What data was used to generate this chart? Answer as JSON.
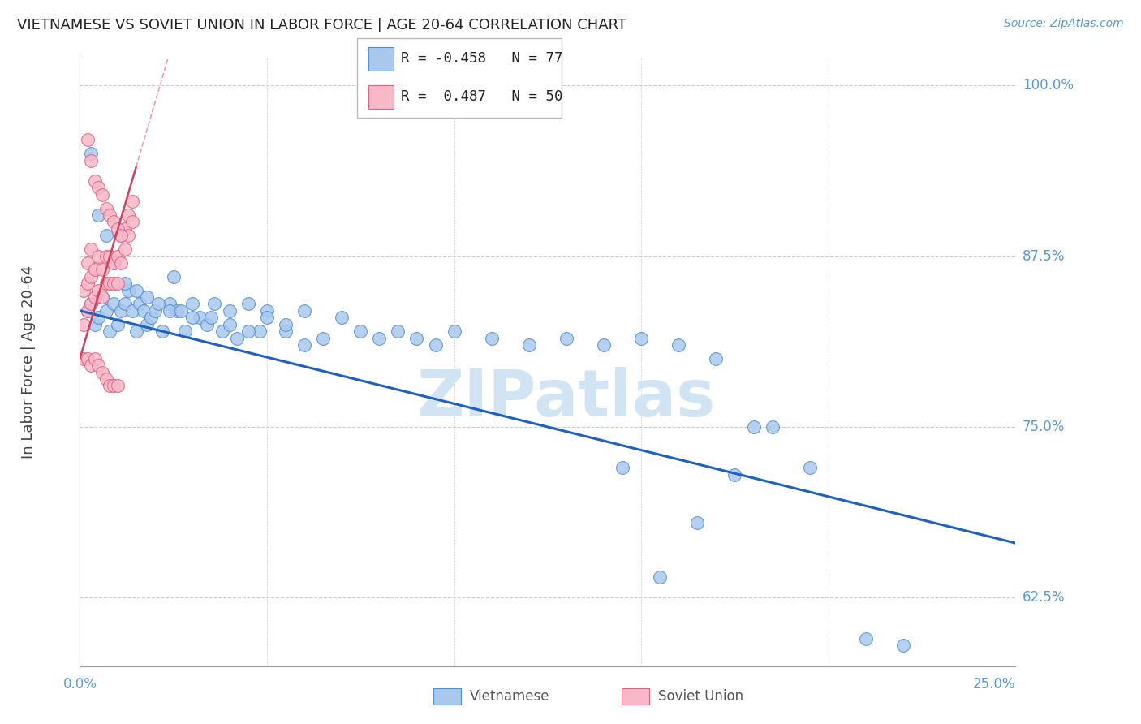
{
  "title": "VIETNAMESE VS SOVIET UNION IN LABOR FORCE | AGE 20-64 CORRELATION CHART",
  "source": "Source: ZipAtlas.com",
  "ylabel": "In Labor Force | Age 20-64",
  "xlim": [
    0.0,
    0.25
  ],
  "ylim": [
    0.575,
    1.02
  ],
  "yticks": [
    0.625,
    0.75,
    0.875,
    1.0
  ],
  "ytick_labels": [
    "62.5%",
    "75.0%",
    "87.5%",
    "100.0%"
  ],
  "legend_r_blue": "-0.458",
  "legend_n_blue": "77",
  "legend_r_pink": " 0.487",
  "legend_n_pink": "50",
  "blue_scatter_color": "#aac8ee",
  "blue_edge_color": "#5090d0",
  "pink_scatter_color": "#f8b8c8",
  "pink_edge_color": "#e06080",
  "blue_line_color": "#2060c0",
  "pink_line_color": "#d04060",
  "axis_label_color": "#5599dd",
  "title_color": "#222222",
  "grid_color": "#cccccc",
  "watermark_color": "#d0e4f4",
  "blue_x": [
    0.002,
    0.003,
    0.004,
    0.005,
    0.006,
    0.007,
    0.008,
    0.009,
    0.01,
    0.011,
    0.012,
    0.013,
    0.014,
    0.015,
    0.016,
    0.017,
    0.018,
    0.019,
    0.02,
    0.022,
    0.024,
    0.026,
    0.028,
    0.03,
    0.032,
    0.034,
    0.036,
    0.038,
    0.04,
    0.042,
    0.045,
    0.048,
    0.05,
    0.055,
    0.06,
    0.065,
    0.07,
    0.075,
    0.08,
    0.085,
    0.09,
    0.095,
    0.1,
    0.11,
    0.12,
    0.13,
    0.14,
    0.15,
    0.16,
    0.17,
    0.003,
    0.005,
    0.007,
    0.009,
    0.012,
    0.015,
    0.018,
    0.021,
    0.024,
    0.027,
    0.03,
    0.035,
    0.04,
    0.045,
    0.05,
    0.055,
    0.06,
    0.025,
    0.18,
    0.195,
    0.21,
    0.22,
    0.175,
    0.185,
    0.165,
    0.155,
    0.145
  ],
  "blue_y": [
    0.835,
    0.84,
    0.825,
    0.83,
    0.845,
    0.835,
    0.82,
    0.84,
    0.825,
    0.835,
    0.84,
    0.85,
    0.835,
    0.82,
    0.84,
    0.835,
    0.825,
    0.83,
    0.835,
    0.82,
    0.84,
    0.835,
    0.82,
    0.84,
    0.83,
    0.825,
    0.84,
    0.82,
    0.835,
    0.815,
    0.84,
    0.82,
    0.835,
    0.82,
    0.835,
    0.815,
    0.83,
    0.82,
    0.815,
    0.82,
    0.815,
    0.81,
    0.82,
    0.815,
    0.81,
    0.815,
    0.81,
    0.815,
    0.81,
    0.8,
    0.95,
    0.905,
    0.89,
    0.87,
    0.855,
    0.85,
    0.845,
    0.84,
    0.835,
    0.835,
    0.83,
    0.83,
    0.825,
    0.82,
    0.83,
    0.825,
    0.81,
    0.86,
    0.75,
    0.72,
    0.595,
    0.59,
    0.715,
    0.75,
    0.68,
    0.64,
    0.72
  ],
  "pink_x": [
    0.001,
    0.001,
    0.002,
    0.002,
    0.002,
    0.003,
    0.003,
    0.003,
    0.004,
    0.004,
    0.005,
    0.005,
    0.006,
    0.006,
    0.007,
    0.007,
    0.008,
    0.008,
    0.009,
    0.009,
    0.01,
    0.01,
    0.011,
    0.011,
    0.012,
    0.012,
    0.013,
    0.013,
    0.014,
    0.014,
    0.001,
    0.002,
    0.003,
    0.004,
    0.005,
    0.006,
    0.007,
    0.008,
    0.009,
    0.01,
    0.002,
    0.003,
    0.004,
    0.005,
    0.006,
    0.007,
    0.008,
    0.009,
    0.01,
    0.011
  ],
  "pink_y": [
    0.825,
    0.85,
    0.835,
    0.855,
    0.87,
    0.84,
    0.86,
    0.88,
    0.845,
    0.865,
    0.85,
    0.875,
    0.845,
    0.865,
    0.855,
    0.875,
    0.855,
    0.875,
    0.855,
    0.87,
    0.855,
    0.875,
    0.87,
    0.89,
    0.88,
    0.895,
    0.89,
    0.905,
    0.9,
    0.915,
    0.8,
    0.8,
    0.795,
    0.8,
    0.795,
    0.79,
    0.785,
    0.78,
    0.78,
    0.78,
    0.96,
    0.945,
    0.93,
    0.925,
    0.92,
    0.91,
    0.905,
    0.9,
    0.895,
    0.89
  ],
  "blue_trend_x0": 0.0,
  "blue_trend_y0": 0.835,
  "blue_trend_x1": 0.25,
  "blue_trend_y1": 0.665,
  "pink_trend_x0": 0.0,
  "pink_trend_y0": 0.8,
  "pink_trend_x1": 0.015,
  "pink_trend_y1": 0.94
}
